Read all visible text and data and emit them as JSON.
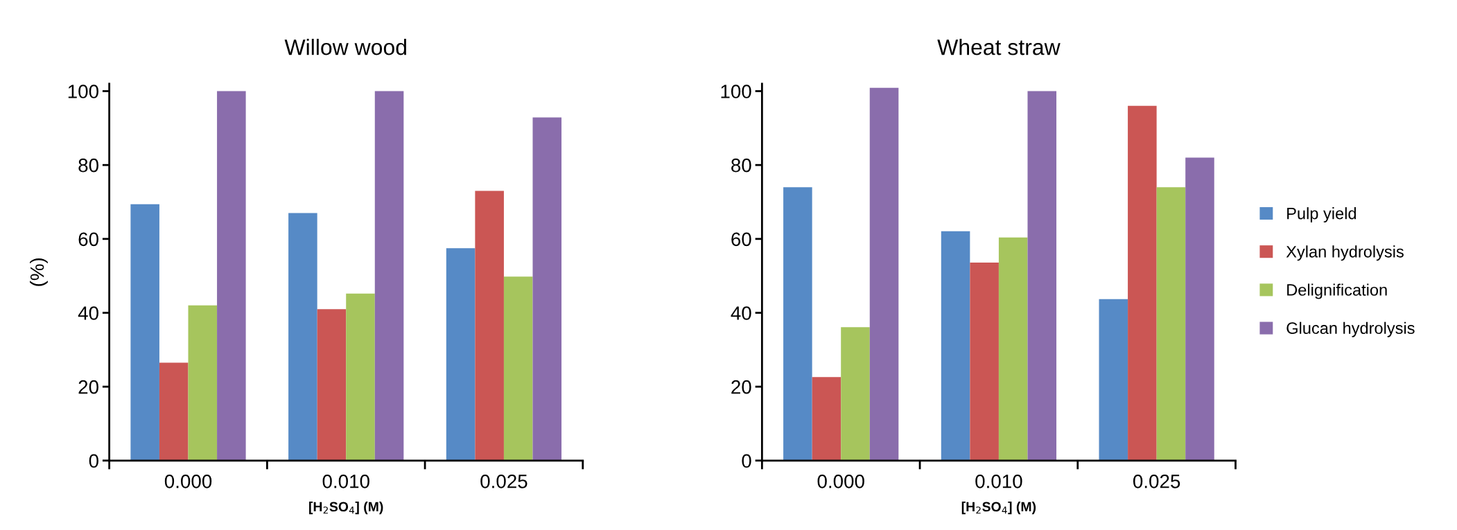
{
  "chart_data": [
    {
      "type": "bar",
      "title": "Willow wood",
      "xlabel": "[H$_{2}$SO$_{4}$] (M)",
      "ylabel": "(%)",
      "categories": [
        "0.000",
        "0.010",
        "0.025"
      ],
      "ylim": [
        0,
        102
      ],
      "yticks": [
        0,
        20,
        40,
        60,
        80,
        100
      ],
      "grid": false,
      "series": [
        {
          "color": "#568ac6",
          "values": [
            69.4,
            67.0,
            57.5
          ]
        },
        {
          "color": "#cb5654",
          "values": [
            26.5,
            41.0,
            73.0
          ]
        },
        {
          "color": "#a6c55d",
          "values": [
            42.0,
            45.2,
            49.8
          ]
        },
        {
          "color": "#8a6dac",
          "values": [
            100,
            100,
            92.9
          ]
        }
      ]
    },
    {
      "type": "bar",
      "title": "Wheat straw",
      "xlabel": "[H$_{2}$SO$_{4}$] (M)",
      "categories": [
        "0.000",
        "0.010",
        "0.025"
      ],
      "ylim": [
        0,
        102
      ],
      "yticks": [
        0,
        20,
        40,
        60,
        80,
        100
      ],
      "grid": false,
      "legend": "right",
      "series": [
        {
          "name": "Pulp yield",
          "color": "#568ac6",
          "values": [
            74.0,
            62.1,
            43.7
          ]
        },
        {
          "name": "Xylan hydrolysis",
          "color": "#cb5654",
          "values": [
            22.6,
            53.6,
            96.0
          ]
        },
        {
          "name": "Delignification",
          "color": "#a6c55d",
          "values": [
            36.1,
            60.4,
            74.0
          ]
        },
        {
          "name": "Glucan hydrolysis",
          "color": "#8a6dac",
          "values": [
            100.9,
            100,
            82.0
          ]
        }
      ]
    }
  ]
}
